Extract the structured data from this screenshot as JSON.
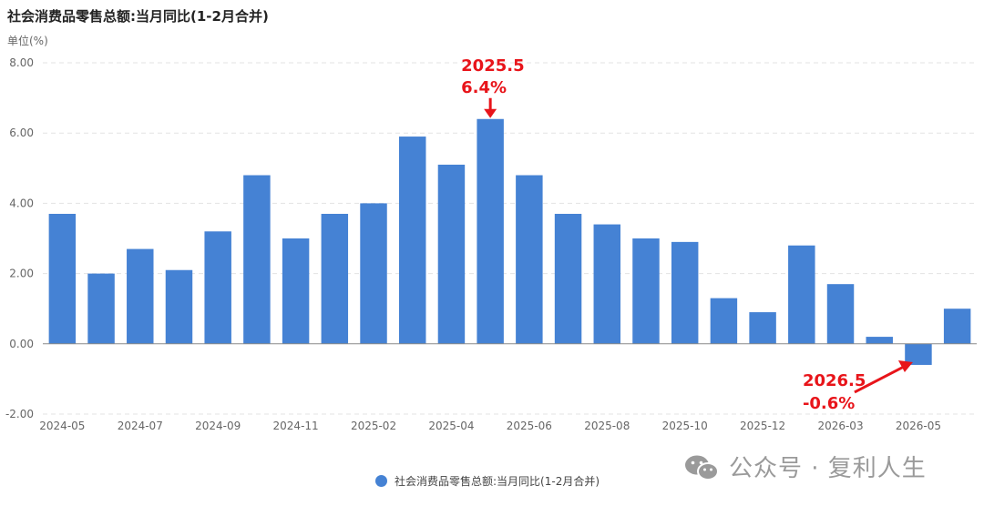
{
  "chart_data": {
    "type": "bar",
    "title": "社会消费品零售总额:当月同比(1-2月合并)",
    "unit_label": "单位(%)",
    "ylim": [
      -2,
      8
    ],
    "y_ticks": [
      "8.00",
      "6.00",
      "4.00",
      "2.00",
      "0.00",
      "-2.00"
    ],
    "y_tick_values": [
      8,
      6,
      4,
      2,
      0,
      -2
    ],
    "categories": [
      "2024-05",
      "2024-06",
      "2024-07",
      "2024-08",
      "2024-09",
      "2024-10",
      "2024-11",
      "2024-12",
      "2025-02",
      "2025-03",
      "2025-04",
      "2025-05",
      "2025-06",
      "2025-07",
      "2025-08",
      "2025-09",
      "2025-10",
      "2025-11",
      "2025-12",
      "2026-02",
      "2026-03",
      "2026-04",
      "2026-05",
      "2026-06"
    ],
    "x_tick_labels": [
      "2024-05",
      "2024-07",
      "2024-09",
      "2024-11",
      "2025-02",
      "2025-04",
      "2025-06",
      "2025-08",
      "2025-10",
      "2025-12",
      "2026-03",
      "2026-05"
    ],
    "x_tick_label_indices": [
      0,
      2,
      4,
      6,
      8,
      10,
      12,
      14,
      16,
      18,
      20,
      22
    ],
    "series": [
      {
        "name": "社会消费品零售总额:当月同比(1-2月合并)",
        "color": "#4582d4",
        "values": [
          3.7,
          2.0,
          2.7,
          2.1,
          3.2,
          4.8,
          3.0,
          3.7,
          4.0,
          5.9,
          5.1,
          6.4,
          4.8,
          3.7,
          3.4,
          3.0,
          2.9,
          1.3,
          0.9,
          2.8,
          1.7,
          0.2,
          -0.6,
          1.0
        ]
      }
    ],
    "grid": true,
    "legend_position": "bottom-center",
    "annotations": [
      {
        "index": 11,
        "line1": "2025.5",
        "line2": "6.4%",
        "color": "#e8141a"
      },
      {
        "index": 22,
        "line1": "2026.5",
        "line2": "-0.6%",
        "color": "#e8141a"
      }
    ]
  },
  "watermark": {
    "text": "公众号 · 复利人生",
    "icon": "wechat-icon"
  }
}
